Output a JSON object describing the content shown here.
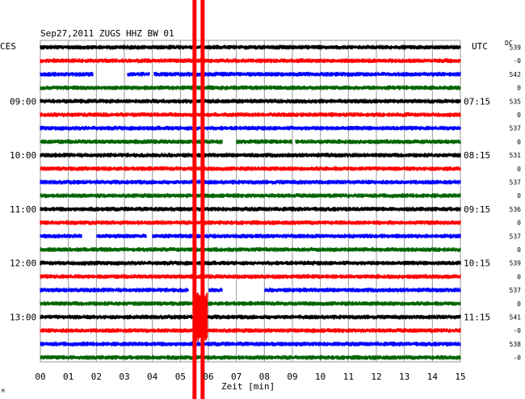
{
  "chart_data": {
    "type": "line",
    "title": "Sep27,2011   ZUGS HHZ BW 01",
    "left_label": "CES",
    "right_label": "UTC",
    "dc_label": "DC",
    "xlabel": "Zeit [min]",
    "x_ticks": [
      "00",
      "01",
      "02",
      "03",
      "04",
      "05",
      "06",
      "07",
      "08",
      "09",
      "10",
      "11",
      "12",
      "13",
      "14",
      "15"
    ],
    "xlim": [
      0,
      15
    ],
    "left_hour_labels": [
      {
        "row": 4,
        "text": "09:00"
      },
      {
        "row": 8,
        "text": "10:00"
      },
      {
        "row": 12,
        "text": "11:00"
      },
      {
        "row": 16,
        "text": "12:00"
      },
      {
        "row": 20,
        "text": "13:00"
      }
    ],
    "right_hour_labels": [
      {
        "row": 4,
        "text": "07:15"
      },
      {
        "row": 8,
        "text": "08:15"
      },
      {
        "row": 12,
        "text": "09:15"
      },
      {
        "row": 16,
        "text": "10:15"
      },
      {
        "row": 20,
        "text": "11:15"
      }
    ],
    "dc_values": [
      "539",
      "-0",
      "542",
      "0",
      "535",
      "0",
      "537",
      "0",
      "531",
      "0",
      "537",
      "0",
      "536",
      "0",
      "537",
      "0",
      "539",
      "0",
      "537",
      "0",
      "541",
      "-0",
      "538",
      "-0"
    ],
    "trace_colors": [
      "#000000",
      "#ff0000",
      "#0000ff",
      "#006400"
    ],
    "trace_gaps_minutes": [
      {
        "row": 2,
        "from": 1.9,
        "to": 3.1
      },
      {
        "row": 2,
        "from": 3.9,
        "to": 4.05
      },
      {
        "row": 7,
        "from": 6.5,
        "to": 7.0
      },
      {
        "row": 7,
        "from": 9.0,
        "to": 9.1
      },
      {
        "row": 14,
        "from": 1.5,
        "to": 2.0
      },
      {
        "row": 14,
        "from": 3.8,
        "to": 4.0
      },
      {
        "row": 18,
        "from": 5.3,
        "to": 6.0
      },
      {
        "row": 18,
        "from": 6.5,
        "to": 8.0
      }
    ],
    "event_marker_minutes": 5.75,
    "event_rows": [
      19,
      20,
      21
    ],
    "grid": true,
    "footer_mark": "M"
  }
}
